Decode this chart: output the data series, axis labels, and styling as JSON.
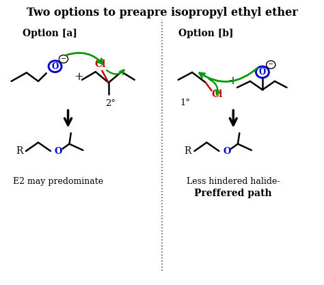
{
  "title": "Two options to preapre isopropyl ethyl ether",
  "title_fontsize": 11.5,
  "title_weight": "bold",
  "bg_color": "#ffffff",
  "figsize": [
    4.74,
    4.17
  ],
  "dpi": 100,
  "option_a_label": "Option [a]",
  "option_b_label": "Option [b]",
  "label_fontsize": 10,
  "label_weight": "bold",
  "degree_a": "2°",
  "degree_b": "1°",
  "caption_a": "E2 may predominate",
  "caption_b1": "Less hindered halide-",
  "caption_b2": "Preffered path",
  "caption_fontsize": 9,
  "caption_b2_weight": "bold",
  "black": "#000000",
  "blue": "#0000cc",
  "red": "#cc0000",
  "green": "#009900",
  "line_width": 1.8,
  "arrow_lw": 2.0
}
